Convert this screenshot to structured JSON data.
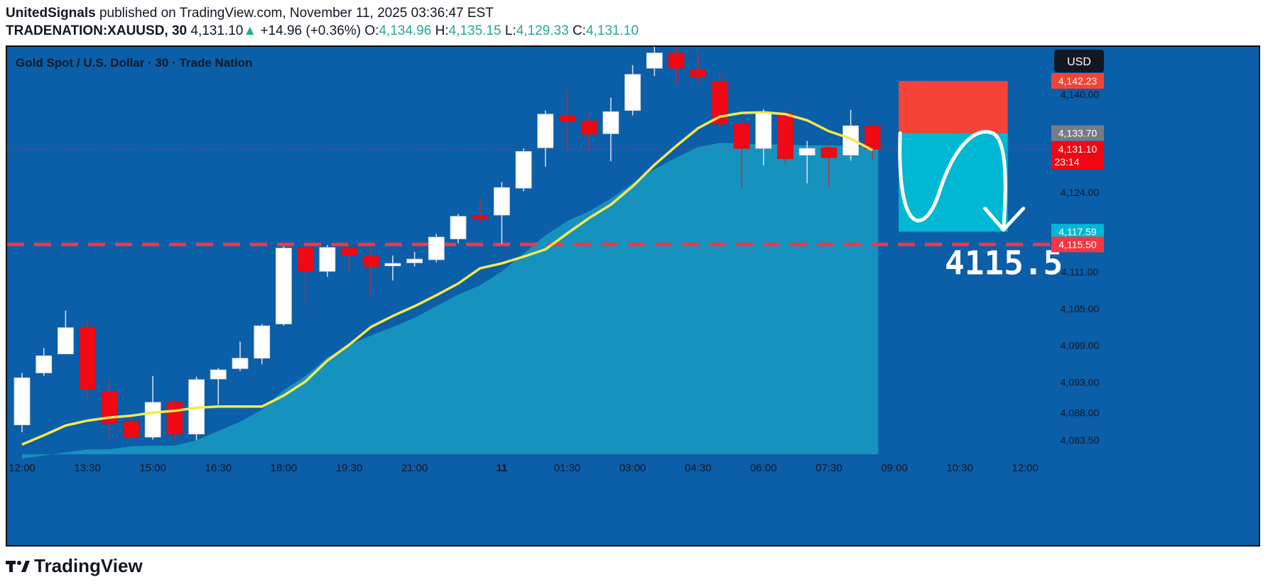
{
  "header": {
    "publisher": "UnitedSignals",
    "published_text": " published on TradingView.com, November 11, 2025 03:36:47 EST",
    "symbol": "TRADENATION:XAUUSD, 30",
    "last": "4,131.10",
    "arrow": "▲",
    "change": "+14.96 (+0.36%)",
    "o_label": "O:",
    "o_value": "4,134.96",
    "h_label": "H:",
    "h_value": "4,135.15",
    "l_label": "L:",
    "l_value": "4,129.33",
    "c_label": "C:",
    "c_value": "4,131.10"
  },
  "footer": {
    "brand": "TradingView"
  },
  "colors": {
    "bg": "#0b5ea8",
    "bull": "#ffffff",
    "bear": "#f00814",
    "ma": "#f5e94a",
    "area": "#1aa6c8",
    "red_box": "#f44336",
    "green_box": "#00b8d4",
    "dash": "#f23645"
  },
  "chart_data": {
    "type": "candlestick",
    "title": "Gold Spot / U.S. Dollar · 30 · Trade Nation",
    "currency": "USD",
    "ylim": [
      4081.2,
      4147.8
    ],
    "y_ticks": [
      "4,140.00",
      "4,124.00",
      "4,111.00",
      "4,105.00",
      "4,099.00",
      "4,093.00",
      "4,088.00",
      "4,083.50"
    ],
    "y_tick_values": [
      4140.0,
      4124.0,
      4111.0,
      4105.0,
      4099.0,
      4093.0,
      4088.0,
      4083.5
    ],
    "x_ticks": [
      "12:00",
      "13:30",
      "15:00",
      "16:30",
      "18:00",
      "19:30",
      "21:00",
      "11",
      "01:30",
      "03:00",
      "04:30",
      "06:00",
      "07:30",
      "09:00",
      "10:30",
      "12:00"
    ],
    "x_tick_index": [
      0,
      3,
      6,
      9,
      12,
      15,
      18,
      22,
      25,
      28,
      31,
      34,
      37,
      40,
      43,
      46
    ],
    "candles": [
      {
        "o": 4086.0,
        "h": 4094.5,
        "l": 4084.8,
        "c": 4093.7
      },
      {
        "o": 4094.5,
        "h": 4098.6,
        "l": 4094.0,
        "c": 4097.3
      },
      {
        "o": 4097.6,
        "h": 4104.7,
        "l": 4097.6,
        "c": 4101.9
      },
      {
        "o": 4102.0,
        "h": 4103.2,
        "l": 4090.0,
        "c": 4091.9
      },
      {
        "o": 4091.5,
        "h": 4093.5,
        "l": 4083.5,
        "c": 4086.2
      },
      {
        "o": 4086.6,
        "h": 4087.4,
        "l": 4083.6,
        "c": 4083.9
      },
      {
        "o": 4084.0,
        "h": 4094.0,
        "l": 4083.6,
        "c": 4089.7
      },
      {
        "o": 4089.7,
        "h": 4090.1,
        "l": 4083.5,
        "c": 4084.5
      },
      {
        "o": 4084.5,
        "h": 4093.9,
        "l": 4083.5,
        "c": 4093.4
      },
      {
        "o": 4093.5,
        "h": 4095.3,
        "l": 4089.3,
        "c": 4095.0
      },
      {
        "o": 4095.2,
        "h": 4099.6,
        "l": 4094.8,
        "c": 4096.9
      },
      {
        "o": 4096.9,
        "h": 4102.5,
        "l": 4095.9,
        "c": 4102.2
      },
      {
        "o": 4102.5,
        "h": 4115.2,
        "l": 4102.2,
        "c": 4114.9
      },
      {
        "o": 4115.0,
        "h": 4115.3,
        "l": 4105.7,
        "c": 4111.1
      },
      {
        "o": 4111.1,
        "h": 4115.4,
        "l": 4110.2,
        "c": 4115.0
      },
      {
        "o": 4115.0,
        "h": 4115.6,
        "l": 4111.0,
        "c": 4113.7
      },
      {
        "o": 4113.6,
        "h": 4114.9,
        "l": 4107.0,
        "c": 4111.9
      },
      {
        "o": 4112.0,
        "h": 4113.7,
        "l": 4109.6,
        "c": 4112.4
      },
      {
        "o": 4112.5,
        "h": 4114.3,
        "l": 4111.9,
        "c": 4113.1
      },
      {
        "o": 4113.0,
        "h": 4117.2,
        "l": 4112.6,
        "c": 4116.7
      },
      {
        "o": 4116.4,
        "h": 4120.5,
        "l": 4115.7,
        "c": 4120.1
      },
      {
        "o": 4120.2,
        "h": 4122.9,
        "l": 4118.9,
        "c": 4119.7
      },
      {
        "o": 4120.3,
        "h": 4125.7,
        "l": 4115.6,
        "c": 4124.8
      },
      {
        "o": 4124.7,
        "h": 4131.2,
        "l": 4124.2,
        "c": 4130.7
      },
      {
        "o": 4131.3,
        "h": 4137.4,
        "l": 4128.2,
        "c": 4136.8
      },
      {
        "o": 4136.6,
        "h": 4140.8,
        "l": 4130.6,
        "c": 4135.6
      },
      {
        "o": 4135.7,
        "h": 4136.8,
        "l": 4130.6,
        "c": 4133.5
      },
      {
        "o": 4133.6,
        "h": 4139.5,
        "l": 4129.1,
        "c": 4137.2
      },
      {
        "o": 4137.4,
        "h": 4144.8,
        "l": 4136.6,
        "c": 4143.3
      },
      {
        "o": 4144.3,
        "h": 4148.5,
        "l": 4143.0,
        "c": 4146.8
      },
      {
        "o": 4146.8,
        "h": 4147.6,
        "l": 4141.8,
        "c": 4144.3
      },
      {
        "o": 4144.1,
        "h": 4146.7,
        "l": 4141.9,
        "c": 4142.9
      },
      {
        "o": 4142.2,
        "h": 4143.6,
        "l": 4134.6,
        "c": 4135.2
      },
      {
        "o": 4135.3,
        "h": 4135.8,
        "l": 4124.7,
        "c": 4131.2
      },
      {
        "o": 4131.2,
        "h": 4137.6,
        "l": 4128.4,
        "c": 4137.1
      },
      {
        "o": 4137.0,
        "h": 4137.5,
        "l": 4128.5,
        "c": 4129.5
      },
      {
        "o": 4130.1,
        "h": 4132.4,
        "l": 4125.5,
        "c": 4131.2
      },
      {
        "o": 4131.3,
        "h": 4132.1,
        "l": 4125.0,
        "c": 4129.7
      },
      {
        "o": 4130.1,
        "h": 4137.5,
        "l": 4129.2,
        "c": 4134.9
      },
      {
        "o": 4134.9,
        "h": 4135.1,
        "l": 4129.3,
        "c": 4131.1
      }
    ],
    "ma": [
      4082.8,
      4084.3,
      4085.9,
      4086.7,
      4087.2,
      4087.5,
      4088.0,
      4088.3,
      4088.8,
      4089.0,
      4089.0,
      4089.0,
      4090.8,
      4093.1,
      4096.5,
      4099.1,
      4102.0,
      4103.8,
      4105.4,
      4107.2,
      4109.1,
      4111.6,
      4112.4,
      4113.5,
      4114.7,
      4117.3,
      4119.8,
      4122.0,
      4125.0,
      4128.5,
      4131.6,
      4134.5,
      4136.4,
      4137.0,
      4137.1,
      4136.8,
      4135.8,
      4134.0,
      4132.8,
      4130.9
    ],
    "area": [
      4080.5,
      4081.0,
      4081.5,
      4082.0,
      4082.0,
      4082.5,
      4082.6,
      4082.6,
      4083.5,
      4085.0,
      4086.5,
      4088.5,
      4091.7,
      4094.0,
      4097.0,
      4099.1,
      4100.6,
      4102.0,
      4103.5,
      4105.4,
      4107.3,
      4108.8,
      4111.1,
      4114.0,
      4117.0,
      4119.3,
      4120.9,
      4123.0,
      4125.5,
      4127.8,
      4129.7,
      4131.4,
      4132.1,
      4132.0,
      4131.9,
      4131.8,
      4131.7,
      4131.7,
      4131.6,
      4131.5
    ],
    "price_tags": [
      {
        "label": "4,142.23",
        "value": 4142.23,
        "bg": "#f44336"
      },
      {
        "label": "4,133.70",
        "value": 4133.7,
        "bg": "#787b86"
      },
      {
        "label": "4,131.10",
        "value": 4131.1,
        "bg": "#f00814",
        "sub": "23:14"
      },
      {
        "label": "4,117.59",
        "value": 4117.59,
        "bg": "#00b8d4"
      },
      {
        "label": "4,115.50",
        "value": 4115.5,
        "bg": "#f23645"
      }
    ],
    "position": {
      "stop": 4142.23,
      "entry": 4133.7,
      "target": 4117.59,
      "start_index": 40.2,
      "end_index": 45.2
    },
    "support_level": 4115.5,
    "annotation": "4115.5"
  }
}
